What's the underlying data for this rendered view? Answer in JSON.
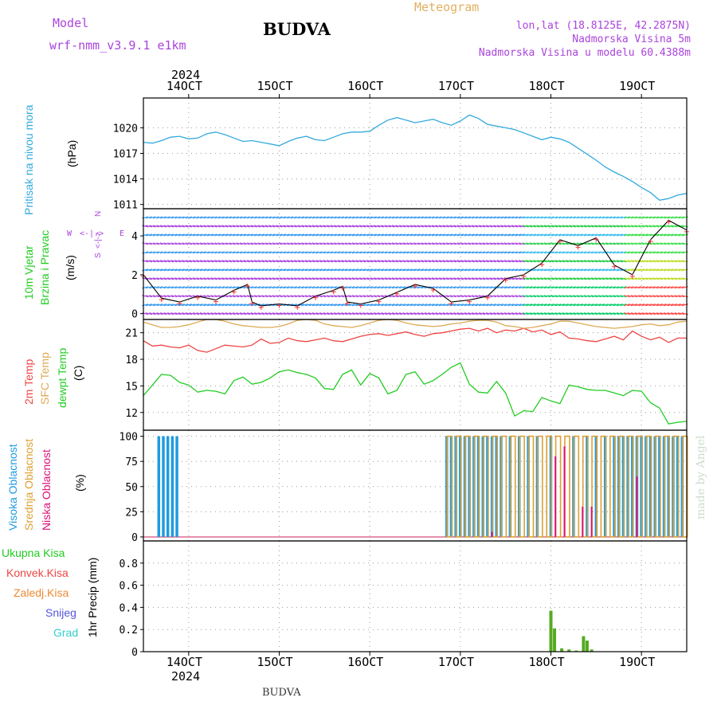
{
  "header": {
    "model_label": "Model",
    "model_name": "wrf-nmm_v3.9.1 e1km",
    "title": "BUDVA",
    "meteogram_label": "Meteogram",
    "lonlat": "lon,lat (18.8125E, 42.2875N)",
    "elevation": "Nadmorska Visina 5m",
    "model_elevation": "Nadmorska Visina u modelu 60.4388m",
    "footer_title": "BUDVA",
    "credit": "made by Angel"
  },
  "colors": {
    "pressure": "#33aadd",
    "temp2m": "#ee4444",
    "sfc_temp": "#ddaa55",
    "dewpt": "#22cc22",
    "high_cloud": "#1e9be0",
    "mid_cloud": "#dda033",
    "low_cloud": "#dd1177",
    "total_precip": "#55aa22",
    "purple": "#aa44dd",
    "orange_title": "#e0b060"
  },
  "time_axis": {
    "year": "2024",
    "labels": [
      "14OCT",
      "15OCT",
      "16OCT",
      "17OCT",
      "18OCT",
      "19OCT"
    ],
    "start_day": 13.5,
    "end_day": 19.5
  },
  "panels": {
    "pressure": {
      "label1": "Pritisak na nivou mora",
      "label2": "(hPa)"
    },
    "wind": {
      "label1": "10m Vjetar",
      "label2": "Brzina i Pravac",
      "label3": "(m/s)",
      "compass_w": "W",
      "compass_e": "E",
      "compass_n": "N",
      "compass_arrow_h": "<-|->",
      "compass_arrow_v": "<-|->",
      "compass_s": "S"
    },
    "temp": {
      "label1": "2m Temp",
      "label2": "SFC Temp",
      "label3": "dewpt Temp",
      "label4": "(C)"
    },
    "cloud": {
      "label1": "Visoka Oblacnost",
      "label2": "Srednja Oblacnost",
      "label3": "Niska Oblacnost",
      "label4": "(%)"
    },
    "precip": {
      "label1": "Ukupna Kisa",
      "label2": "Konvek.Kisa",
      "label3": "Zaledj.Kisa",
      "label4": "Snijeg",
      "label5": "Grad",
      "label6": "1hr Precip (mm)"
    }
  },
  "chart_data": [
    {
      "type": "line",
      "name": "pressure",
      "ylim": [
        1010.5,
        1023.5
      ],
      "yticks": [
        "1011",
        "1014",
        "1017",
        "1020"
      ],
      "x": [
        13.5,
        13.6,
        13.7,
        13.8,
        13.9,
        14.0,
        14.1,
        14.2,
        14.3,
        14.4,
        14.5,
        14.6,
        14.7,
        14.8,
        14.9,
        15.0,
        15.1,
        15.2,
        15.3,
        15.4,
        15.5,
        15.6,
        15.7,
        15.8,
        15.9,
        16.0,
        16.1,
        16.2,
        16.3,
        16.4,
        16.5,
        16.6,
        16.7,
        16.8,
        16.9,
        17.0,
        17.1,
        17.2,
        17.3,
        17.4,
        17.5,
        17.6,
        17.7,
        17.8,
        17.9,
        18.0,
        18.1,
        18.2,
        18.3,
        18.4,
        18.5,
        18.6,
        18.7,
        18.8,
        18.9,
        19.0,
        19.1,
        19.2,
        19.3,
        19.4,
        19.5
      ],
      "series": [
        {
          "values": [
            1018.3,
            1018.2,
            1018.5,
            1018.9,
            1019.0,
            1018.7,
            1018.8,
            1019.3,
            1019.5,
            1019.2,
            1018.8,
            1018.4,
            1018.5,
            1018.3,
            1018.1,
            1017.9,
            1018.4,
            1018.8,
            1019.0,
            1018.6,
            1018.5,
            1018.9,
            1019.3,
            1019.5,
            1019.5,
            1019.6,
            1020.3,
            1020.9,
            1021.2,
            1020.9,
            1020.6,
            1020.8,
            1021.0,
            1020.6,
            1020.3,
            1020.8,
            1021.5,
            1021.1,
            1020.4,
            1020.2,
            1020.0,
            1019.8,
            1019.4,
            1019.0,
            1018.6,
            1018.9,
            1018.7,
            1018.3,
            1017.6,
            1016.9,
            1016.2,
            1015.4,
            1014.8,
            1014.3,
            1013.7,
            1013.0,
            1012.4,
            1011.5,
            1011.7,
            1012.1,
            1012.3
          ]
        }
      ]
    },
    {
      "type": "line",
      "name": "wind",
      "ylim": [
        -0.3,
        5.4
      ],
      "yticks": [
        "0",
        "2",
        "4"
      ],
      "x": [
        13.5,
        13.7,
        13.9,
        14.1,
        14.3,
        14.5,
        14.65,
        14.7,
        14.8,
        15.0,
        15.2,
        15.4,
        15.6,
        15.7,
        15.75,
        15.9,
        16.1,
        16.3,
        16.5,
        16.7,
        16.9,
        17.1,
        17.3,
        17.5,
        17.7,
        17.9,
        18.1,
        18.3,
        18.5,
        18.7,
        18.9,
        19.1,
        19.3,
        19.5
      ],
      "series": [
        {
          "name": "speed",
          "values": [
            2.0,
            0.8,
            0.6,
            0.9,
            0.7,
            1.2,
            1.5,
            0.6,
            0.4,
            0.5,
            0.4,
            0.9,
            1.2,
            1.4,
            0.6,
            0.5,
            0.7,
            1.1,
            1.5,
            1.3,
            0.6,
            0.7,
            0.9,
            1.8,
            2.0,
            2.6,
            3.8,
            3.5,
            3.9,
            2.5,
            2.0,
            3.8,
            4.8,
            4.3
          ]
        }
      ]
    },
    {
      "type": "line",
      "name": "temperature",
      "ylim": [
        10,
        22.5
      ],
      "yticks": [
        "12",
        "15",
        "18",
        "21"
      ],
      "x": [
        13.5,
        13.6,
        13.7,
        13.8,
        13.9,
        14.0,
        14.1,
        14.2,
        14.3,
        14.4,
        14.5,
        14.6,
        14.7,
        14.8,
        14.9,
        15.0,
        15.1,
        15.2,
        15.3,
        15.4,
        15.5,
        15.6,
        15.7,
        15.8,
        15.9,
        16.0,
        16.1,
        16.2,
        16.3,
        16.4,
        16.5,
        16.6,
        16.7,
        16.8,
        16.9,
        17.0,
        17.1,
        17.2,
        17.3,
        17.4,
        17.5,
        17.6,
        17.7,
        17.8,
        17.9,
        18.0,
        18.1,
        18.2,
        18.3,
        18.4,
        18.5,
        18.6,
        18.7,
        18.8,
        18.9,
        19.0,
        19.1,
        19.2,
        19.3,
        19.4,
        19.5
      ],
      "series": [
        {
          "name": "2m Temp",
          "values": [
            20.1,
            19.5,
            19.6,
            19.4,
            19.3,
            19.6,
            19.0,
            18.8,
            19.2,
            19.6,
            19.5,
            19.4,
            19.6,
            20.3,
            19.8,
            19.9,
            20.4,
            20.1,
            20.0,
            20.2,
            20.4,
            20.1,
            20.0,
            20.3,
            20.6,
            20.8,
            20.9,
            20.7,
            20.9,
            21.1,
            20.8,
            20.6,
            20.9,
            21.0,
            21.2,
            21.4,
            21.5,
            21.2,
            21.5,
            21.0,
            21.3,
            21.2,
            21.5,
            21.1,
            21.3,
            20.8,
            21.1,
            20.4,
            20.3,
            20.1,
            20.0,
            20.3,
            20.6,
            20.2,
            21.2,
            20.6,
            20.2,
            20.5,
            19.9,
            20.4,
            20.4
          ]
        },
        {
          "name": "SFC Temp",
          "values": [
            22.2,
            21.9,
            21.6,
            21.6,
            21.7,
            21.9,
            22.2,
            22.5,
            22.5,
            22.3,
            22.0,
            21.8,
            21.7,
            21.6,
            21.6,
            21.7,
            22.0,
            22.4,
            22.5,
            22.4,
            22.0,
            21.8,
            21.7,
            21.6,
            21.8,
            22.1,
            22.4,
            22.5,
            22.4,
            22.1,
            21.9,
            21.8,
            21.7,
            21.8,
            22.0,
            22.1,
            22.3,
            22.4,
            22.4,
            22.2,
            21.8,
            21.7,
            21.5,
            21.6,
            21.8,
            22.0,
            22.3,
            22.3,
            22.1,
            21.9,
            21.7,
            21.6,
            21.5,
            21.6,
            21.7,
            21.9,
            22.0,
            21.8,
            21.9,
            22.2,
            22.3
          ]
        },
        {
          "name": "dewpt Temp",
          "values": [
            13.9,
            15.1,
            16.3,
            16.2,
            15.4,
            15.1,
            14.3,
            14.5,
            14.4,
            14.1,
            15.6,
            16.0,
            15.2,
            15.4,
            15.9,
            16.6,
            16.8,
            16.5,
            16.3,
            15.9,
            14.7,
            14.6,
            16.3,
            16.8,
            15.1,
            16.4,
            15.9,
            14.1,
            14.5,
            16.3,
            16.6,
            15.2,
            15.6,
            16.3,
            17.1,
            17.6,
            15.2,
            14.3,
            14.2,
            15.5,
            14.2,
            11.6,
            12.2,
            12.1,
            13.7,
            13.3,
            13.0,
            15.1,
            14.9,
            14.6,
            14.5,
            14.5,
            14.2,
            13.9,
            14.5,
            14.4,
            13.1,
            12.5,
            10.7,
            10.9,
            11.0
          ]
        }
      ]
    },
    {
      "type": "bar",
      "name": "cloud",
      "ylim": [
        -4,
        106
      ],
      "yticks": [
        "0",
        "25",
        "50",
        "75",
        "100"
      ],
      "series": [
        {
          "name": "Visoka Oblacnost",
          "x": [
            13.67,
            13.72,
            13.77,
            13.82,
            13.87,
            16.85,
            16.9,
            16.95,
            17.0,
            17.05,
            17.1,
            17.15,
            17.2,
            17.25,
            17.3,
            17.35,
            17.4,
            17.45,
            17.55,
            17.65,
            17.75,
            17.85,
            18.0,
            18.25,
            18.4,
            18.5,
            18.6,
            18.7,
            18.75,
            18.8,
            18.85,
            18.9,
            18.95,
            19.0,
            19.05,
            19.1,
            19.15,
            19.2,
            19.25,
            19.3,
            19.35,
            19.4,
            19.45
          ],
          "values": [
            100,
            100,
            100,
            100,
            100,
            100,
            100,
            100,
            100,
            100,
            100,
            100,
            100,
            100,
            100,
            100,
            100,
            100,
            100,
            100,
            100,
            100,
            100,
            100,
            100,
            100,
            100,
            100,
            100,
            100,
            100,
            100,
            100,
            100,
            100,
            100,
            100,
            100,
            100,
            100,
            100,
            100,
            100
          ]
        },
        {
          "name": "Srednja Oblacnost",
          "x": [
            16.88,
            16.98,
            17.08,
            17.18,
            17.28,
            17.38,
            17.48,
            17.58,
            17.68,
            17.78,
            17.88,
            17.98,
            18.08,
            18.18,
            18.28,
            18.38,
            18.48,
            18.58,
            18.68,
            18.78,
            18.88,
            18.98,
            19.08,
            19.18,
            19.28,
            19.38,
            19.48
          ],
          "values": [
            100,
            100,
            100,
            100,
            100,
            100,
            100,
            100,
            100,
            100,
            100,
            100,
            100,
            100,
            100,
            100,
            100,
            100,
            100,
            100,
            100,
            100,
            100,
            100,
            100,
            100,
            100
          ]
        },
        {
          "name": "Niska Oblacnost",
          "x": [
            17.35,
            18.05,
            18.15,
            18.35,
            18.45,
            18.95
          ],
          "values": [
            5,
            80,
            90,
            30,
            30,
            60
          ]
        }
      ]
    },
    {
      "type": "bar",
      "name": "precipitation",
      "ylim": [
        0,
        1.0
      ],
      "yticks": [
        "0",
        "0.2",
        "0.4",
        "0.6",
        "0.8"
      ],
      "series": [
        {
          "name": "Ukupna Kisa",
          "x": [
            18.0,
            18.04,
            18.12,
            18.2,
            18.28,
            18.36,
            18.4,
            18.45
          ],
          "values": [
            0.37,
            0.21,
            0.03,
            0.02,
            0.01,
            0.14,
            0.1,
            0.02
          ]
        }
      ]
    }
  ]
}
